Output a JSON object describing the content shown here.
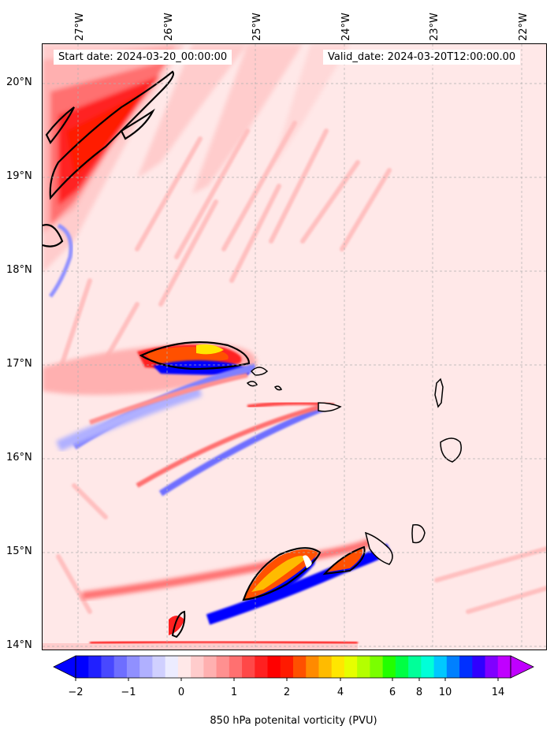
{
  "header": {
    "start_date": "Start date: 2024-03-20_00:00:00",
    "valid_date": "Valid_date: 2024-03-20T12:00:00.00"
  },
  "axes": {
    "lon_labels": [
      "27°W",
      "26°W",
      "25°W",
      "24°W",
      "23°W",
      "22°W"
    ],
    "lat_labels": [
      "20°N",
      "19°N",
      "18°N",
      "17°N",
      "16°N",
      "15°N",
      "14°N"
    ]
  },
  "colorbar": {
    "label": "850 hPa potenital vorticity (PVU)",
    "tick_labels": [
      "−2",
      "−1",
      "0",
      "1",
      "2",
      "4",
      "6",
      "8",
      "10",
      "14"
    ],
    "colors": [
      "#0000ff",
      "#2020ff",
      "#4848ff",
      "#6e6eff",
      "#9090ff",
      "#b0b0ff",
      "#d0d0ff",
      "#ececff",
      "#ffe8e8",
      "#ffcccc",
      "#ffb0b0",
      "#ff9090",
      "#ff7070",
      "#ff4848",
      "#ff2020",
      "#ff0000",
      "#ff1a00",
      "#ff5000",
      "#ff8a00",
      "#ffbb00",
      "#ffe600",
      "#e6ff00",
      "#b4ff00",
      "#7aff00",
      "#22ff00",
      "#00ff44",
      "#00ff99",
      "#00ffd8",
      "#00c8ff",
      "#0080ff",
      "#0030ff",
      "#3000ff",
      "#8000ff",
      "#c000ff"
    ],
    "under_color": "#0000ff",
    "over_color": "#c000ff"
  }
}
